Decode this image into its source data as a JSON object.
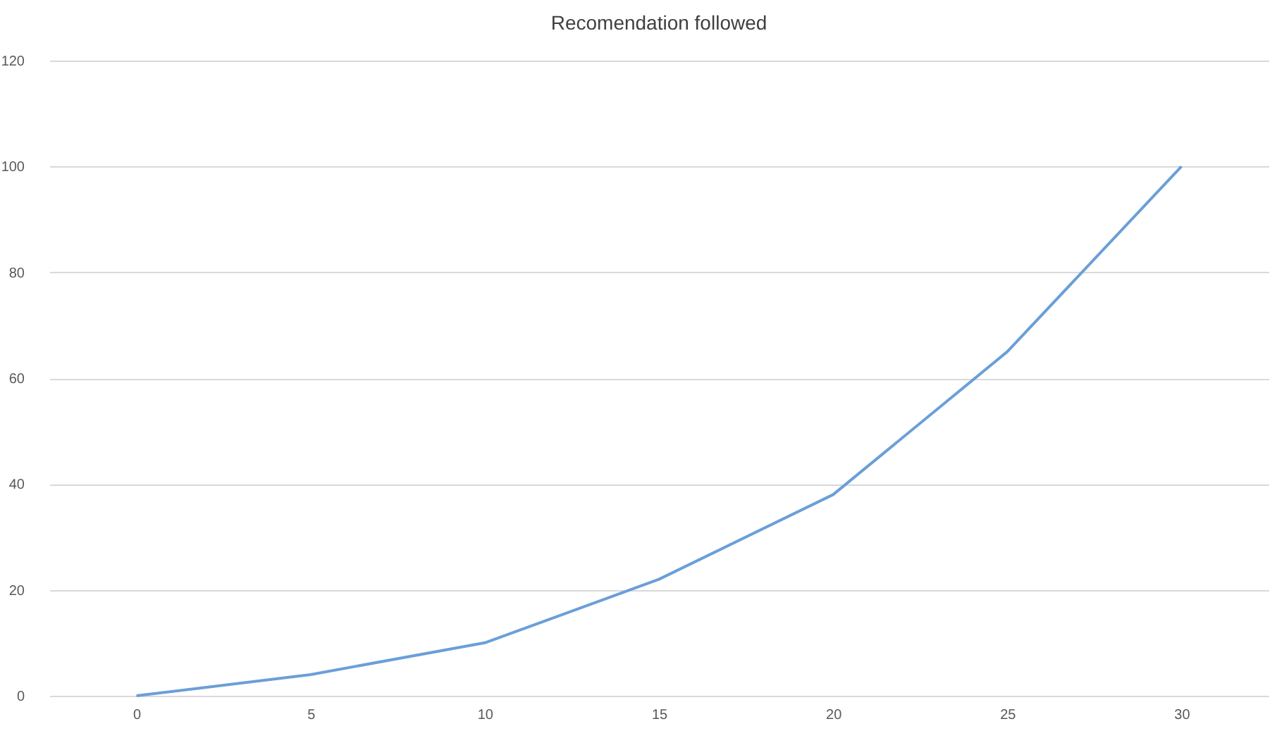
{
  "chart_data": {
    "type": "line",
    "title": "Recomendation followed",
    "categories": [
      "0",
      "5",
      "10",
      "15",
      "20",
      "25",
      "30"
    ],
    "series": [
      {
        "color": "#6a9fd8",
        "values": [
          0,
          4,
          10,
          22,
          38,
          65,
          100
        ]
      }
    ],
    "ylim": [
      0,
      120
    ],
    "yticks": [
      0,
      20,
      40,
      60,
      80,
      100,
      120
    ],
    "grid": "y",
    "marker": "none",
    "line_style": "solid"
  }
}
